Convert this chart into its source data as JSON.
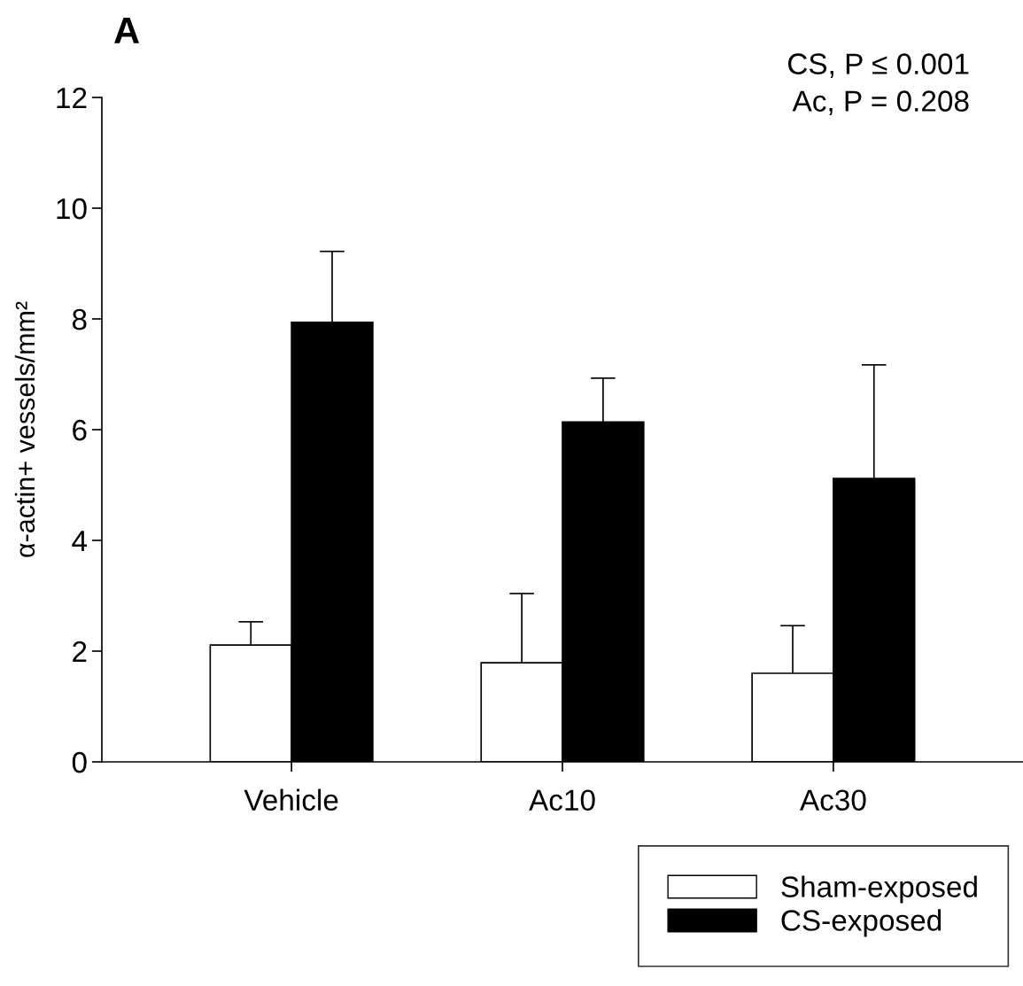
{
  "chart_data": {
    "type": "bar",
    "title": "A",
    "ylabel": "α-actin+ vessels/mm²",
    "categories": [
      "Vehicle",
      "Ac10",
      "Ac30"
    ],
    "series": [
      {
        "name": "Sham-exposed",
        "color": "#ffffff",
        "values": [
          2.11,
          1.79,
          1.6
        ],
        "errors": [
          [
            2.11,
            2.53
          ],
          [
            1.79,
            3.04
          ],
          [
            1.6,
            2.46
          ]
        ]
      },
      {
        "name": "CS-exposed",
        "color": "#000000",
        "values": [
          7.94,
          6.14,
          5.12
        ],
        "errors": [
          [
            7.94,
            9.22
          ],
          [
            6.14,
            6.93
          ],
          [
            5.12,
            7.17
          ]
        ]
      }
    ],
    "ylim": [
      0,
      12
    ],
    "yticks": [
      0,
      2,
      4,
      6,
      8,
      10,
      12
    ],
    "annotations": [
      "CS, P ≤ 0.001",
      "Ac, P = 0.208"
    ],
    "legend": "bottom right",
    "grid": false
  }
}
